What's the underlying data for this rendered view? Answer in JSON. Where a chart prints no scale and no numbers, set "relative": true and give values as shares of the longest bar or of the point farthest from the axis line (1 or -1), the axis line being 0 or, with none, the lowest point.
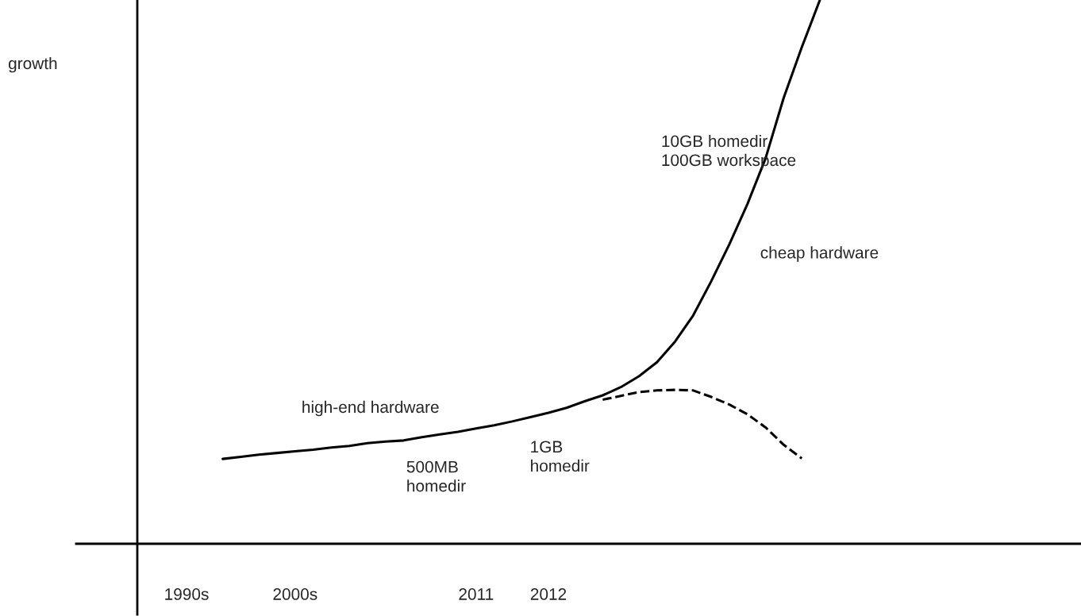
{
  "chart_data": {
    "type": "line",
    "relative": true,
    "categories": [
      "1990s",
      null,
      null,
      null,
      null,
      null,
      "2000s",
      null,
      null,
      null,
      null,
      null,
      null,
      null,
      null,
      null,
      "2011",
      null,
      null,
      null,
      "2012",
      null,
      null,
      null,
      null,
      null,
      null,
      null,
      null,
      null,
      null,
      null,
      null,
      null,
      null,
      null,
      null,
      null,
      null,
      null,
      null,
      null,
      null,
      null,
      null,
      null,
      null,
      null,
      null,
      null
    ],
    "series": [
      {
        "color": "#000000",
        "line_style": "solid",
        "values": [
          null,
          null,
          0.156,
          0.16,
          0.164,
          0.167,
          0.17,
          0.173,
          0.177,
          0.18,
          0.185,
          0.188,
          0.19,
          0.196,
          0.201,
          0.206,
          0.212,
          0.218,
          0.225,
          0.233,
          0.241,
          0.25,
          0.262,
          0.273,
          0.288,
          0.308,
          0.334,
          0.372,
          0.42,
          0.483,
          0.551,
          0.625,
          0.709,
          0.82,
          0.913,
          1,
          null,
          null,
          null,
          null,
          null,
          null,
          null,
          null,
          null,
          null,
          null,
          null,
          null,
          null
        ]
      },
      {
        "color": "#000000",
        "line_style": "dashed",
        "values": [
          null,
          null,
          null,
          null,
          null,
          null,
          null,
          null,
          null,
          null,
          null,
          null,
          null,
          null,
          null,
          null,
          null,
          null,
          null,
          null,
          null,
          null,
          null,
          0.265,
          0.272,
          0.279,
          0.282,
          0.283,
          0.282,
          0.27,
          0.256,
          0.238,
          0.214,
          0.182,
          0.157,
          null,
          null,
          null,
          null,
          null,
          null,
          null,
          null,
          null,
          null,
          null,
          null,
          null,
          null,
          null
        ]
      }
    ],
    "annotations": [
      "growth",
      "high-end hardware",
      "500MB\nhomedir",
      "1GB\nhomedir",
      "10GB homedir\n100GB workspace",
      "cheap hardware"
    ],
    "grid": false,
    "legend": false
  }
}
